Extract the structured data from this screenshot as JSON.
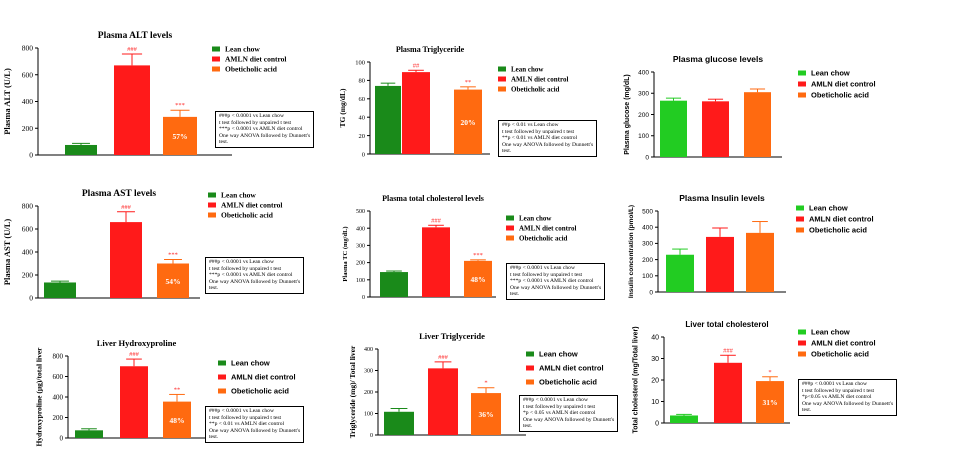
{
  "colors": {
    "lean_chow": "#1a8a1a",
    "lean_chow_bright": "#22cc22",
    "amln": "#ff1a1a",
    "oca": "#ff6a10",
    "sig": "#ff2a2a"
  },
  "chart_data": [
    {
      "id": "alt",
      "type": "bar",
      "title": "Plasma ALT levels",
      "ylabel": "Plasma ALT (U/L)",
      "ylim": [
        0,
        800
      ],
      "yticks": [
        "0",
        "200",
        "400",
        "600",
        "800"
      ],
      "categories": [
        "Lean chow",
        "AMLN diet control",
        "Obeticholic acid"
      ],
      "values": [
        75,
        670,
        285
      ],
      "errors": [
        12,
        85,
        50
      ],
      "bar_labels": [
        "",
        "",
        "57%"
      ],
      "sig_labels": [
        "",
        "###",
        "***"
      ],
      "legend": [
        "Lean chow",
        "AMLN diet control",
        "Obeticholic acid"
      ],
      "stats": [
        "###p < 0.0001 vs Lean chow",
        "t test followed by unpaired t test",
        "***p < 0.0001 vs AMLN diet control",
        "One way ANOVA followed by Dunnett's",
        "test."
      ]
    },
    {
      "id": "tg",
      "type": "bar",
      "title": "Plasma Triglyceride",
      "ylabel": "TG (mg/dL)",
      "ylim": [
        0,
        100
      ],
      "yticks": [
        "0",
        "20",
        "40",
        "60",
        "80",
        "100"
      ],
      "categories": [
        "Lean chow",
        "AMLN diet control",
        "Obeticholic acid"
      ],
      "values": [
        74,
        89,
        70
      ],
      "errors": [
        3,
        2,
        3
      ],
      "bar_labels": [
        "",
        "",
        "20%"
      ],
      "sig_labels": [
        "",
        "##",
        "**"
      ],
      "legend": [
        "Lean chow",
        "AMLN diet control",
        "Obeticholic acid"
      ],
      "stats": [
        "##p < 0.01 vs Lean chow",
        "t test followed by unpaired t test",
        "**p < 0.01 vs AMLN diet control",
        "One way ANOVA followed by Dunnett's",
        "test."
      ]
    },
    {
      "id": "glucose",
      "type": "bar",
      "title": "Plasma glucose levels",
      "ylabel": "Plasma glucose (mg/dL)",
      "ylim": [
        0,
        400
      ],
      "yticks": [
        "0",
        "100",
        "200",
        "300",
        "400"
      ],
      "categories": [
        "Lean chow",
        "AMLN diet control",
        "Obeticholic acid"
      ],
      "values": [
        265,
        262,
        305
      ],
      "errors": [
        12,
        10,
        15
      ],
      "bar_labels": [
        "",
        "",
        ""
      ],
      "sig_labels": [
        "",
        "",
        ""
      ],
      "legend": [
        "Lean chow",
        "AMLN diet control",
        "Obeticholic acid"
      ],
      "stats": []
    },
    {
      "id": "ast",
      "type": "bar",
      "title": "Plasma AST levels",
      "ylabel": "Plasma AST (U/L)",
      "ylim": [
        0,
        800
      ],
      "yticks": [
        "0",
        "200",
        "400",
        "600",
        "800"
      ],
      "categories": [
        "Lean chow",
        "AMLN diet control",
        "Obeticholic acid"
      ],
      "values": [
        135,
        660,
        300
      ],
      "errors": [
        12,
        90,
        35
      ],
      "bar_labels": [
        "",
        "",
        "54%"
      ],
      "sig_labels": [
        "",
        "###",
        "***"
      ],
      "legend": [
        "Lean chow",
        "AMLN diet control",
        "Obeticholic acid"
      ],
      "stats": [
        "###p < 0.0001 vs Lean chow",
        "t test followed by unpaired t test",
        "***p < 0.0001 vs AMLN diet control",
        "One way ANOVA followed by Dunnett's",
        "test."
      ]
    },
    {
      "id": "tc",
      "type": "bar",
      "title": "Plasma total cholesterol levels",
      "ylabel": "Plasma TC (mg/dL)",
      "ylim": [
        0,
        500
      ],
      "yticks": [
        "0",
        "100",
        "200",
        "300",
        "400",
        "500"
      ],
      "categories": [
        "Lean chow",
        "AMLN diet control",
        "Obeticholic acid"
      ],
      "values": [
        145,
        405,
        210
      ],
      "errors": [
        6,
        12,
        6
      ],
      "bar_labels": [
        "",
        "",
        "48%"
      ],
      "sig_labels": [
        "",
        "###",
        "***"
      ],
      "legend": [
        "Lean chow",
        "AMLN diet control",
        "Obeticholic acid"
      ],
      "stats": [
        "###p < 0.0001 vs Lean chow",
        "t test followed by unpaired t test",
        "***p < 0.0001 vs AMLN diet control",
        "One way ANOVA followed by Dunnett's",
        "test."
      ]
    },
    {
      "id": "insulin",
      "type": "bar",
      "title": "Plasma Insulin levels",
      "ylabel": "Insulin concentration (pmol/L)",
      "ylim": [
        0,
        500
      ],
      "yticks": [
        "0",
        "100",
        "200",
        "300",
        "400",
        "500"
      ],
      "categories": [
        "Lean chow",
        "AMLN diet control",
        "Obeticholic acid"
      ],
      "values": [
        230,
        340,
        365
      ],
      "errors": [
        35,
        55,
        70
      ],
      "bar_labels": [
        "",
        "",
        ""
      ],
      "sig_labels": [
        "",
        "",
        ""
      ],
      "legend": [
        "Lean chow",
        "AMLN diet control",
        "Obeticholic acid"
      ],
      "stats": []
    },
    {
      "id": "hyp",
      "type": "bar",
      "title": "Liver Hydroxyproline",
      "ylabel": "Hydroxyproline (µg)/total liver",
      "ylim": [
        0,
        800
      ],
      "yticks": [
        "0",
        "200",
        "400",
        "600",
        "800"
      ],
      "categories": [
        "Lean chow",
        "AMLN diet control",
        "Obeticholic acid"
      ],
      "values": [
        75,
        700,
        355
      ],
      "errors": [
        15,
        70,
        70
      ],
      "bar_labels": [
        "",
        "",
        "48%"
      ],
      "sig_labels": [
        "",
        "###",
        "**"
      ],
      "legend": [
        "Lean chow",
        "AMLN diet control",
        "Obeticholic acid"
      ],
      "stats": [
        "###p < 0.0001 vs Lean chow",
        "t test followed by unpaired t test",
        "**p < 0.01 vs AMLN diet control",
        "One way ANOVA followed by Dunnett's",
        "test."
      ]
    },
    {
      "id": "ltg",
      "type": "bar",
      "title": "Liver Triglyceride",
      "ylabel": "Triglyceride (mg)/ Total liver",
      "ylim": [
        0,
        400
      ],
      "yticks": [
        "0",
        "100",
        "200",
        "300",
        "400"
      ],
      "categories": [
        "Lean chow",
        "AMLN diet control",
        "Obeticholic acid"
      ],
      "values": [
        108,
        310,
        195
      ],
      "errors": [
        15,
        30,
        25
      ],
      "bar_labels": [
        "",
        "",
        "36%"
      ],
      "sig_labels": [
        "",
        "###",
        "*"
      ],
      "legend": [
        "Lean chow",
        "AMLN diet control",
        "Obeticholic acid"
      ],
      "stats": [
        "###p < 0.0001 vs Lean chow",
        "t test followed by unpaired t test",
        "*p < 0.05 vs AMLN diet control",
        "One way ANOVA followed by Dunnett's",
        "test."
      ]
    },
    {
      "id": "ltc",
      "type": "bar",
      "title": "Liver total cholesterol",
      "ylabel": "Total cholesterol (mg/Total liver)",
      "ylim": [
        0,
        40
      ],
      "yticks": [
        "0",
        "10",
        "20",
        "30",
        "40"
      ],
      "categories": [
        "Lean chow",
        "AMLN diet control",
        "Obeticholic acid"
      ],
      "values": [
        3.5,
        28,
        19.5
      ],
      "errors": [
        0.5,
        3.5,
        2
      ],
      "bar_labels": [
        "",
        "",
        "31%"
      ],
      "sig_labels": [
        "",
        "###",
        "*"
      ],
      "legend": [
        "Lean chow",
        "AMLN diet control",
        "Obeticholic acid"
      ],
      "stats": [
        "###p < 0.0001 vs Lean chow",
        "t test followed by unpaired t test",
        "*p<0.05 vs AMLN diet control",
        "One way ANOVA followed by Dunnett's",
        "test."
      ]
    }
  ]
}
